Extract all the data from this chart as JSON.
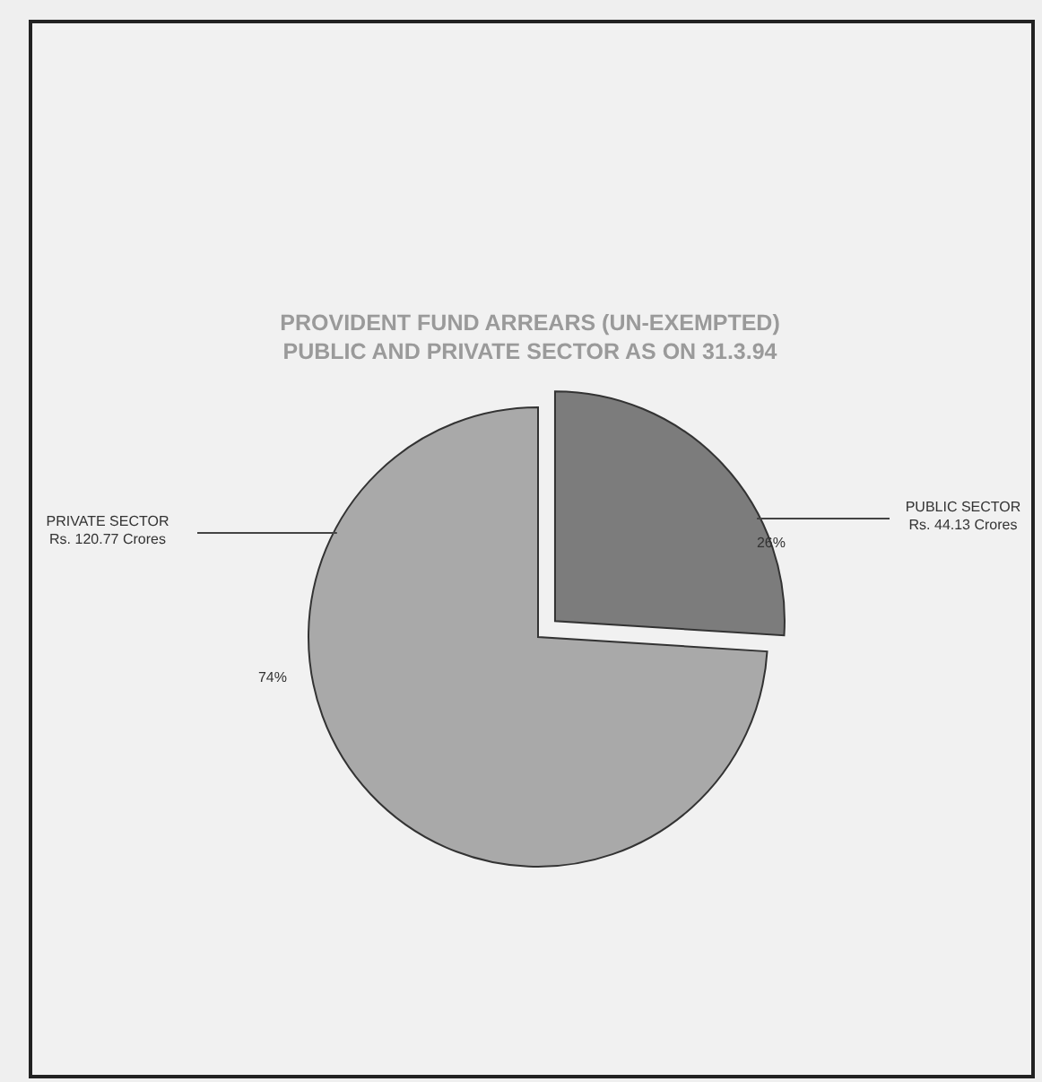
{
  "chart_data": {
    "type": "pie",
    "title": "PROVIDENT FUND ARREARS (UN-EXEMPTED)\nPUBLIC AND PRIVATE SECTOR AS ON 31.3.94",
    "categories": [
      "PUBLIC SECTOR\nRs. 44.13 Crores",
      "PRIVATE SECTOR\nRs. 120.77 Crores"
    ],
    "values": [
      26,
      74
    ],
    "value_labels": [
      "26%",
      "74%"
    ],
    "colors": [
      "#7c7c7c",
      "#a9a9a9"
    ]
  }
}
